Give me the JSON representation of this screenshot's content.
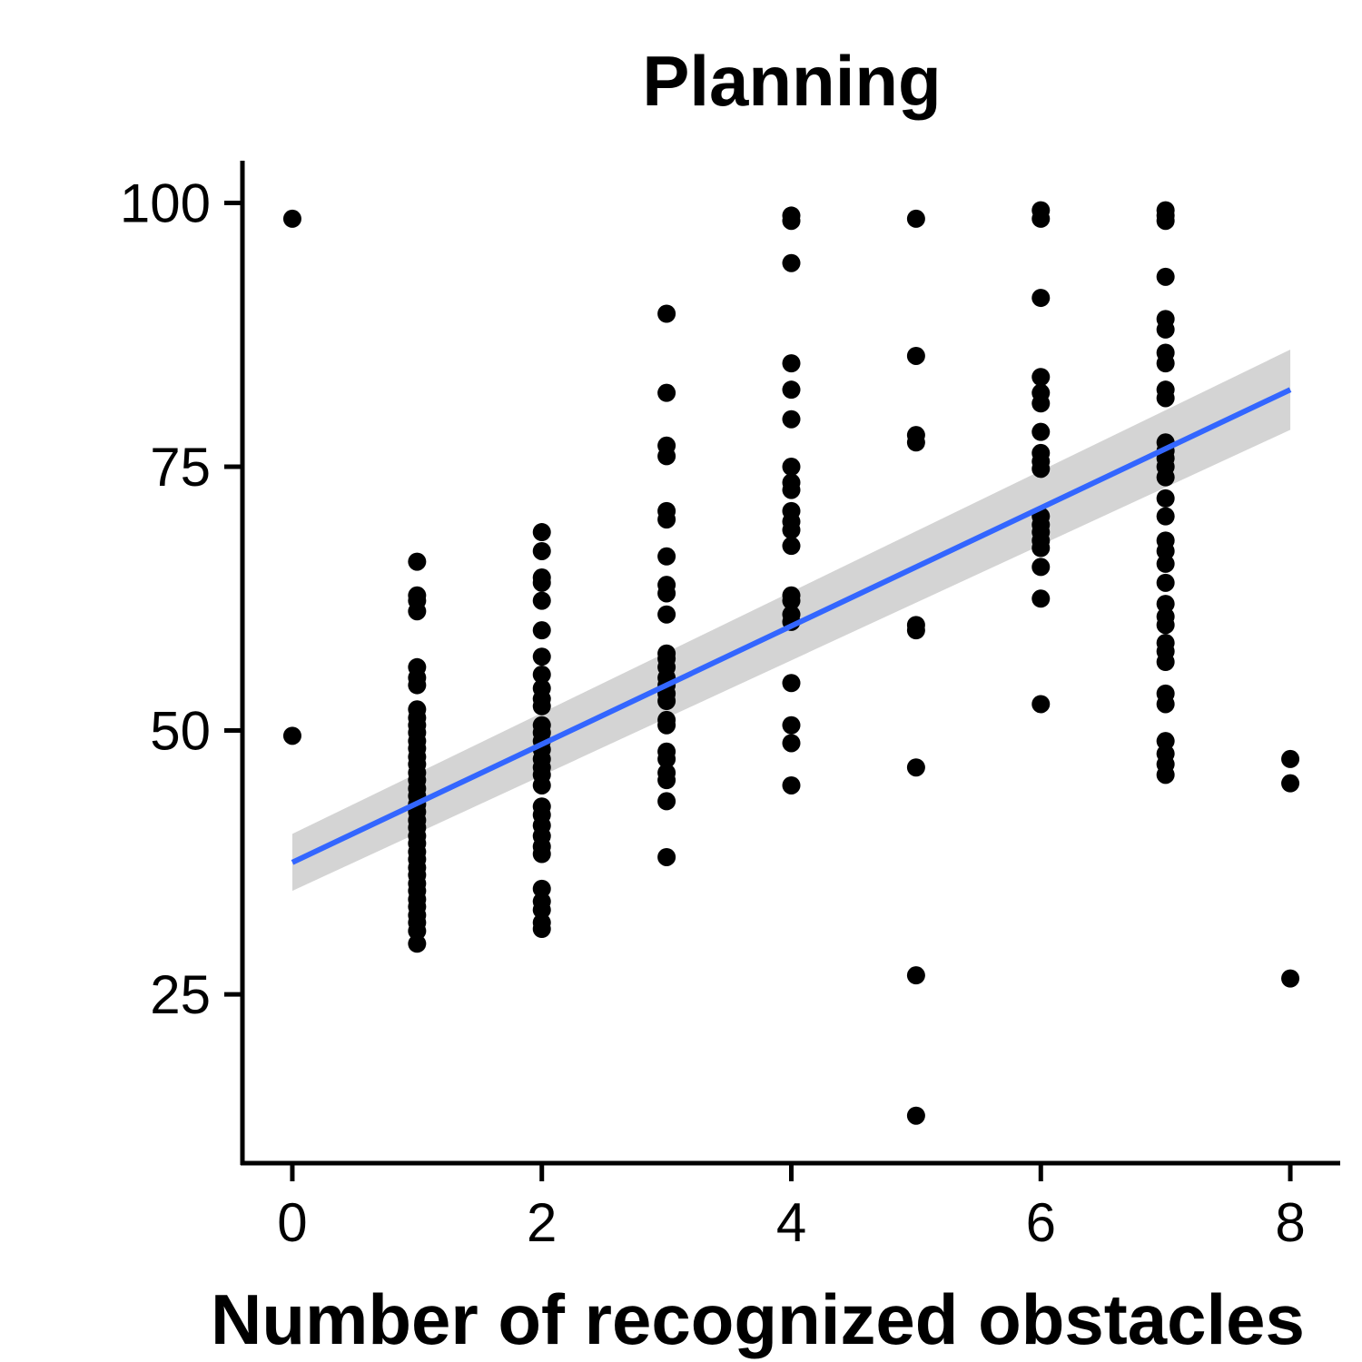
{
  "chart_data": {
    "type": "scatter",
    "title": "Planning",
    "xlabel": "Number of recognized obstacles",
    "ylabel": "",
    "xlim": [
      -0.4,
      8.4
    ],
    "ylim": [
      9,
      104
    ],
    "x_ticks": [
      0,
      2,
      4,
      6,
      8
    ],
    "y_ticks": [
      25,
      50,
      75,
      100
    ],
    "grid": false,
    "legend": "none",
    "colors": {
      "points": "#000000",
      "fit_line": "#3366FF",
      "confidence_band": "#D4D4D4"
    },
    "points": [
      {
        "x": 0,
        "y": 98.5
      },
      {
        "x": 0,
        "y": 49.5
      },
      {
        "x": 1,
        "y": 66
      },
      {
        "x": 1,
        "y": 62.8
      },
      {
        "x": 1,
        "y": 62.3
      },
      {
        "x": 1,
        "y": 61.3
      },
      {
        "x": 1,
        "y": 56
      },
      {
        "x": 1,
        "y": 55
      },
      {
        "x": 1,
        "y": 54.3
      },
      {
        "x": 1,
        "y": 52
      },
      {
        "x": 1,
        "y": 51.2
      },
      {
        "x": 1,
        "y": 50.5
      },
      {
        "x": 1,
        "y": 49.8
      },
      {
        "x": 1,
        "y": 49
      },
      {
        "x": 1,
        "y": 48.3
      },
      {
        "x": 1,
        "y": 47.5
      },
      {
        "x": 1,
        "y": 46.8
      },
      {
        "x": 1,
        "y": 46
      },
      {
        "x": 1,
        "y": 45.3
      },
      {
        "x": 1,
        "y": 44.5
      },
      {
        "x": 1,
        "y": 43.8
      },
      {
        "x": 1,
        "y": 43
      },
      {
        "x": 1,
        "y": 42.3
      },
      {
        "x": 1,
        "y": 41.5
      },
      {
        "x": 1,
        "y": 40.8
      },
      {
        "x": 1,
        "y": 40
      },
      {
        "x": 1,
        "y": 39.3
      },
      {
        "x": 1,
        "y": 38.5
      },
      {
        "x": 1,
        "y": 37.8
      },
      {
        "x": 1,
        "y": 37
      },
      {
        "x": 1,
        "y": 36.3
      },
      {
        "x": 1,
        "y": 35.5
      },
      {
        "x": 1,
        "y": 34.8
      },
      {
        "x": 1,
        "y": 34
      },
      {
        "x": 1,
        "y": 33.3
      },
      {
        "x": 1,
        "y": 32.5
      },
      {
        "x": 1,
        "y": 31.8
      },
      {
        "x": 1,
        "y": 31
      },
      {
        "x": 1,
        "y": 29.8
      },
      {
        "x": 2,
        "y": 68.8
      },
      {
        "x": 2,
        "y": 67
      },
      {
        "x": 2,
        "y": 64.5
      },
      {
        "x": 2,
        "y": 64
      },
      {
        "x": 2,
        "y": 62.3
      },
      {
        "x": 2,
        "y": 59.5
      },
      {
        "x": 2,
        "y": 57
      },
      {
        "x": 2,
        "y": 55.3
      },
      {
        "x": 2,
        "y": 54
      },
      {
        "x": 2,
        "y": 53
      },
      {
        "x": 2,
        "y": 52.3
      },
      {
        "x": 2,
        "y": 50.5
      },
      {
        "x": 2,
        "y": 49.8
      },
      {
        "x": 2,
        "y": 49
      },
      {
        "x": 2,
        "y": 48.2
      },
      {
        "x": 2,
        "y": 47.3
      },
      {
        "x": 2,
        "y": 46.5
      },
      {
        "x": 2,
        "y": 45.8
      },
      {
        "x": 2,
        "y": 44.8
      },
      {
        "x": 2,
        "y": 42.8
      },
      {
        "x": 2,
        "y": 42
      },
      {
        "x": 2,
        "y": 41
      },
      {
        "x": 2,
        "y": 40
      },
      {
        "x": 2,
        "y": 39
      },
      {
        "x": 2,
        "y": 38.3
      },
      {
        "x": 2,
        "y": 35
      },
      {
        "x": 2,
        "y": 33.8
      },
      {
        "x": 2,
        "y": 33
      },
      {
        "x": 2,
        "y": 31.8
      },
      {
        "x": 2,
        "y": 31.2
      },
      {
        "x": 3,
        "y": 89.5
      },
      {
        "x": 3,
        "y": 82
      },
      {
        "x": 3,
        "y": 77
      },
      {
        "x": 3,
        "y": 76
      },
      {
        "x": 3,
        "y": 70.8
      },
      {
        "x": 3,
        "y": 70
      },
      {
        "x": 3,
        "y": 66.5
      },
      {
        "x": 3,
        "y": 63.8
      },
      {
        "x": 3,
        "y": 63
      },
      {
        "x": 3,
        "y": 61
      },
      {
        "x": 3,
        "y": 57.3
      },
      {
        "x": 3,
        "y": 56.8
      },
      {
        "x": 3,
        "y": 56
      },
      {
        "x": 3,
        "y": 55
      },
      {
        "x": 3,
        "y": 54.3
      },
      {
        "x": 3,
        "y": 53.5
      },
      {
        "x": 3,
        "y": 52.8
      },
      {
        "x": 3,
        "y": 51
      },
      {
        "x": 3,
        "y": 50.5
      },
      {
        "x": 3,
        "y": 48
      },
      {
        "x": 3,
        "y": 47.3
      },
      {
        "x": 3,
        "y": 46
      },
      {
        "x": 3,
        "y": 45.3
      },
      {
        "x": 3,
        "y": 43.3
      },
      {
        "x": 3,
        "y": 38
      },
      {
        "x": 4,
        "y": 98.8
      },
      {
        "x": 4,
        "y": 98.3
      },
      {
        "x": 4,
        "y": 94.3
      },
      {
        "x": 4,
        "y": 84.8
      },
      {
        "x": 4,
        "y": 82.3
      },
      {
        "x": 4,
        "y": 79.5
      },
      {
        "x": 4,
        "y": 75
      },
      {
        "x": 4,
        "y": 73.5
      },
      {
        "x": 4,
        "y": 72.8
      },
      {
        "x": 4,
        "y": 70.8
      },
      {
        "x": 4,
        "y": 69.8
      },
      {
        "x": 4,
        "y": 69
      },
      {
        "x": 4,
        "y": 67.5
      },
      {
        "x": 4,
        "y": 62.8
      },
      {
        "x": 4,
        "y": 62.3
      },
      {
        "x": 4,
        "y": 61
      },
      {
        "x": 4,
        "y": 60.3
      },
      {
        "x": 4,
        "y": 54.5
      },
      {
        "x": 4,
        "y": 50.5
      },
      {
        "x": 4,
        "y": 48.8
      },
      {
        "x": 4,
        "y": 44.8
      },
      {
        "x": 5,
        "y": 98.5
      },
      {
        "x": 5,
        "y": 85.5
      },
      {
        "x": 5,
        "y": 78
      },
      {
        "x": 5,
        "y": 77.3
      },
      {
        "x": 5,
        "y": 60
      },
      {
        "x": 5,
        "y": 59.5
      },
      {
        "x": 5,
        "y": 46.5
      },
      {
        "x": 5,
        "y": 26.8
      },
      {
        "x": 5,
        "y": 13.5
      },
      {
        "x": 6,
        "y": 99.3
      },
      {
        "x": 6,
        "y": 98.5
      },
      {
        "x": 6,
        "y": 91
      },
      {
        "x": 6,
        "y": 83.5
      },
      {
        "x": 6,
        "y": 82
      },
      {
        "x": 6,
        "y": 81
      },
      {
        "x": 6,
        "y": 78.3
      },
      {
        "x": 6,
        "y": 76.3
      },
      {
        "x": 6,
        "y": 75.5
      },
      {
        "x": 6,
        "y": 74.8
      },
      {
        "x": 6,
        "y": 70.3
      },
      {
        "x": 6,
        "y": 69.5
      },
      {
        "x": 6,
        "y": 68.8
      },
      {
        "x": 6,
        "y": 68
      },
      {
        "x": 6,
        "y": 67.3
      },
      {
        "x": 6,
        "y": 65.5
      },
      {
        "x": 6,
        "y": 62.5
      },
      {
        "x": 6,
        "y": 52.5
      },
      {
        "x": 7,
        "y": 99.3
      },
      {
        "x": 7,
        "y": 98.8
      },
      {
        "x": 7,
        "y": 98.3
      },
      {
        "x": 7,
        "y": 93
      },
      {
        "x": 7,
        "y": 89
      },
      {
        "x": 7,
        "y": 88
      },
      {
        "x": 7,
        "y": 85.8
      },
      {
        "x": 7,
        "y": 84.8
      },
      {
        "x": 7,
        "y": 82.3
      },
      {
        "x": 7,
        "y": 81.5
      },
      {
        "x": 7,
        "y": 77.3
      },
      {
        "x": 7,
        "y": 76.5
      },
      {
        "x": 7,
        "y": 75.8
      },
      {
        "x": 7,
        "y": 75
      },
      {
        "x": 7,
        "y": 74
      },
      {
        "x": 7,
        "y": 72
      },
      {
        "x": 7,
        "y": 70.3
      },
      {
        "x": 7,
        "y": 68
      },
      {
        "x": 7,
        "y": 67
      },
      {
        "x": 7,
        "y": 65.8
      },
      {
        "x": 7,
        "y": 64
      },
      {
        "x": 7,
        "y": 62
      },
      {
        "x": 7,
        "y": 60.8
      },
      {
        "x": 7,
        "y": 60
      },
      {
        "x": 7,
        "y": 58.3
      },
      {
        "x": 7,
        "y": 57.5
      },
      {
        "x": 7,
        "y": 56.5
      },
      {
        "x": 7,
        "y": 53.5
      },
      {
        "x": 7,
        "y": 52.5
      },
      {
        "x": 7,
        "y": 49
      },
      {
        "x": 7,
        "y": 47.8
      },
      {
        "x": 7,
        "y": 46.8
      },
      {
        "x": 7,
        "y": 45.8
      },
      {
        "x": 8,
        "y": 47.3
      },
      {
        "x": 8,
        "y": 45
      },
      {
        "x": 8,
        "y": 26.5
      }
    ],
    "fit": {
      "method": "linear",
      "x": [
        0,
        8
      ],
      "y": [
        37.5,
        82.3
      ],
      "band_lower": [
        34.8,
        78.5
      ],
      "band_upper": [
        40.2,
        86.1
      ]
    }
  }
}
